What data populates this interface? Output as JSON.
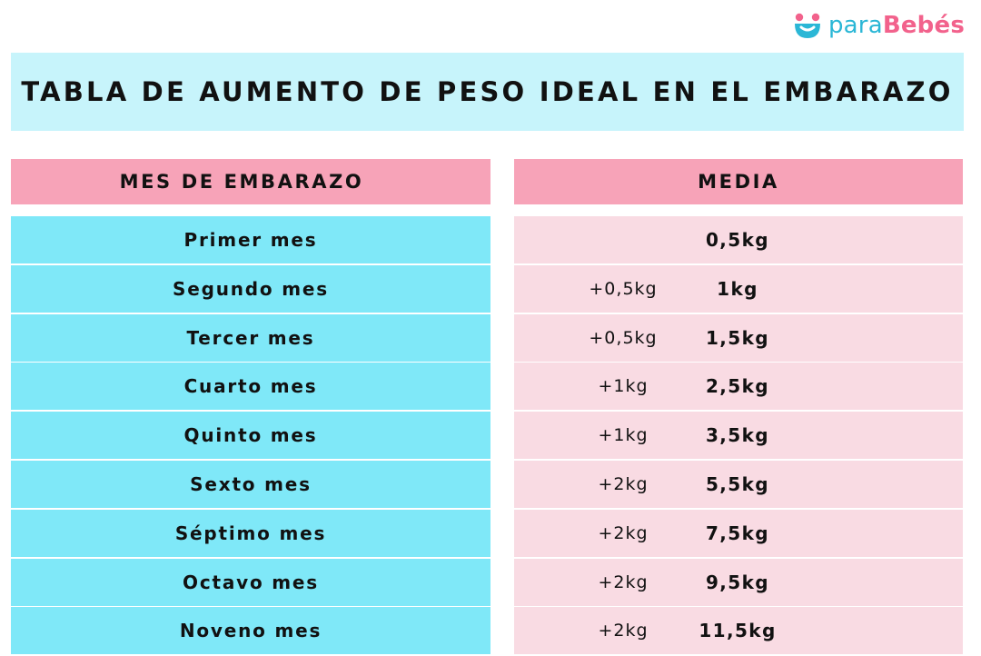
{
  "logo": {
    "part1": "para",
    "part2": "Bebés",
    "icon": "smiling-face-icon",
    "colors": {
      "blue": "#2bb7d6",
      "pink": "#f2628c"
    }
  },
  "title": "TABLA DE AUMENTO DE PESO IDEAL EN EL EMBARAZO",
  "headers": {
    "month": "MES DE EMBARAZO",
    "average": "MEDIA"
  },
  "rows": [
    {
      "month": "Primer mes",
      "increment": "",
      "total": "0,5kg"
    },
    {
      "month": "Segundo mes",
      "increment": "+0,5kg",
      "total": "1kg"
    },
    {
      "month": "Tercer mes",
      "increment": "+0,5kg",
      "total": "1,5kg"
    },
    {
      "month": "Cuarto mes",
      "increment": "+1kg",
      "total": "2,5kg"
    },
    {
      "month": "Quinto mes",
      "increment": "+1kg",
      "total": "3,5kg"
    },
    {
      "month": "Sexto mes",
      "increment": "+2kg",
      "total": "5,5kg"
    },
    {
      "month": "Séptimo mes",
      "increment": "+2kg",
      "total": "7,5kg"
    },
    {
      "month": "Octavo mes",
      "increment": "+2kg",
      "total": "9,5kg"
    },
    {
      "month": "Noveno mes",
      "increment": "+2kg",
      "total": "11,5kg"
    }
  ],
  "colors": {
    "title_bg": "#c7f4fb",
    "header_bg": "#f7a3b8",
    "month_cell_bg": "#7fe8f8",
    "value_cell_bg": "#f9dbe3"
  }
}
